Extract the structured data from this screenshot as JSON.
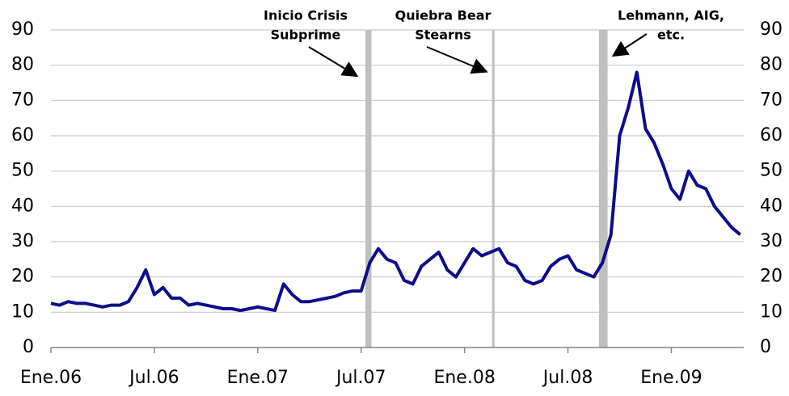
{
  "chart_data": {
    "type": "line",
    "x": [
      0,
      0.5,
      1,
      1.5,
      2,
      2.5,
      3,
      3.5,
      4,
      4.5,
      5,
      5.5,
      6,
      6.5,
      7,
      7.5,
      8,
      8.5,
      9,
      9.5,
      10,
      10.5,
      11,
      11.5,
      12,
      12.5,
      13,
      13.5,
      14,
      14.5,
      15,
      15.5,
      16,
      16.5,
      17,
      17.5,
      18,
      18.5,
      19,
      19.5,
      20,
      20.5,
      21,
      21.5,
      22,
      22.5,
      23,
      23.5,
      24,
      24.5,
      25,
      25.5,
      26,
      26.5,
      27,
      27.5,
      28,
      28.5,
      29,
      29.5,
      30,
      30.5,
      31,
      31.5,
      32,
      32.5,
      33,
      33.5,
      34,
      34.5,
      35,
      35.5,
      36,
      36.5,
      37,
      37.5,
      38,
      38.5,
      39,
      39.5,
      40
    ],
    "series": [
      {
        "color": "#0d0d8a",
        "values": [
          12.5,
          12,
          13,
          12.5,
          12.5,
          12,
          11.5,
          12,
          12,
          13,
          17,
          22,
          15,
          17,
          14,
          14,
          12,
          12.5,
          12,
          11.5,
          11,
          11,
          10.5,
          11,
          11.5,
          11,
          10.5,
          18,
          15,
          13,
          13,
          13.5,
          14,
          14.5,
          15.5,
          16,
          16,
          24,
          28,
          25,
          24,
          19,
          18,
          23,
          25,
          27,
          22,
          20,
          24,
          28,
          26,
          27,
          28,
          24,
          23,
          19,
          18,
          19,
          23,
          25,
          26,
          22,
          21,
          20,
          24,
          32,
          60,
          68,
          78,
          62,
          58,
          52,
          45,
          42,
          50,
          46,
          45,
          40,
          37,
          34,
          32
        ]
      }
    ],
    "xlim": [
      0,
      40.2
    ],
    "xticks": [
      {
        "value": 0,
        "label": "Ene.06"
      },
      {
        "value": 6,
        "label": "Jul.06"
      },
      {
        "value": 12,
        "label": "Ene.07"
      },
      {
        "value": 18,
        "label": "Jul.07"
      },
      {
        "value": 24,
        "label": "Ene.08"
      },
      {
        "value": 30,
        "label": "Jul.08"
      },
      {
        "value": 36,
        "label": "Ene.09"
      }
    ],
    "ylim": [
      0,
      90
    ],
    "yticks": [
      0,
      10,
      20,
      30,
      40,
      50,
      60,
      70,
      80,
      90
    ],
    "y2lim": [
      0,
      90
    ],
    "y2ticks": [
      0,
      10,
      20,
      30,
      40,
      50,
      60,
      70,
      80,
      90
    ],
    "grid": true,
    "events": [
      {
        "label": [
          "Inicio Crisis",
          "Subprime"
        ],
        "start": 18.25,
        "end": 18.6
      },
      {
        "label": [
          "Quiebra Bear",
          "Stearns"
        ],
        "start": 25.6,
        "end": 25.72
      },
      {
        "label": [
          "Lehmann, AIG,",
          "etc."
        ],
        "start": 31.8,
        "end": 32.3
      }
    ]
  }
}
